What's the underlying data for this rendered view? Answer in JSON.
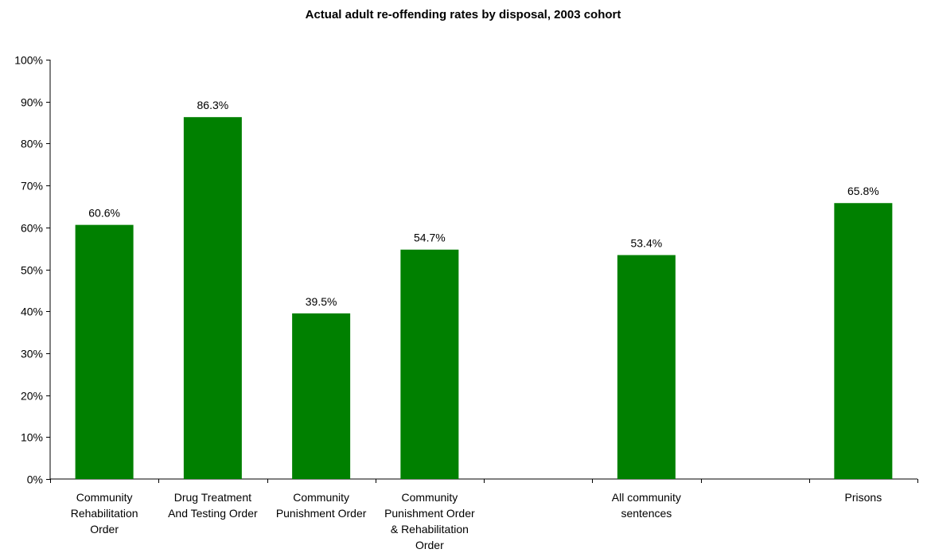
{
  "chart_data": {
    "type": "bar",
    "title": "Actual adult re-offending rates by disposal, 2003 cohort",
    "xlabel": "",
    "ylabel": "",
    "ylim": [
      0,
      100
    ],
    "y_ticks": [
      "0%",
      "10%",
      "20%",
      "30%",
      "40%",
      "50%",
      "60%",
      "70%",
      "80%",
      "90%",
      "100%"
    ],
    "grid": false,
    "legend": "none",
    "bar_color": "#008000",
    "categories": [
      [
        "Community",
        "Rehabilitation",
        "Order"
      ],
      [
        "Drug Treatment",
        "And Testing Order"
      ],
      [
        "Community",
        "Punishment Order"
      ],
      [
        "Community",
        "Punishment Order",
        "& Rehabilitation",
        "Order"
      ],
      [],
      [
        "All community",
        "sentences"
      ],
      [],
      [
        "Prisons"
      ]
    ],
    "values": [
      60.6,
      86.3,
      39.5,
      54.7,
      null,
      53.4,
      null,
      65.8
    ],
    "value_labels": [
      "60.6%",
      "86.3%",
      "39.5%",
      "54.7%",
      "",
      "53.4%",
      "",
      "65.8%"
    ]
  }
}
